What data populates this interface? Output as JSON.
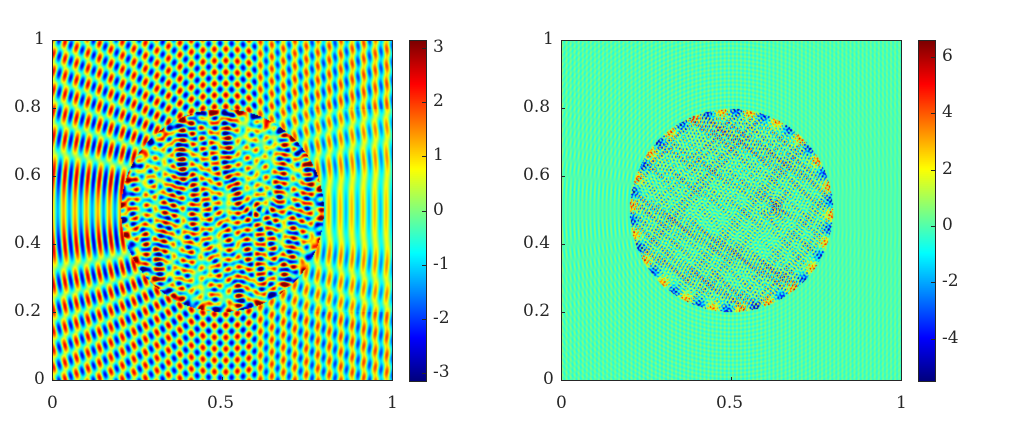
{
  "chart_data": [
    {
      "type": "heatmap",
      "title": "",
      "xlabel": "",
      "ylabel": "",
      "xlim": [
        0,
        1
      ],
      "ylim": [
        0,
        1
      ],
      "xticks": [
        "0",
        "0.5",
        "1"
      ],
      "yticks": [
        "0",
        "0.2",
        "0.4",
        "0.6",
        "0.8",
        "1"
      ],
      "colormap": "jet",
      "clim": [
        -3.14,
        3.14
      ],
      "colorbar_ticks": [
        "-3",
        "-2",
        "-1",
        "0",
        "1",
        "2",
        "3"
      ],
      "field": "scattered wave, circular scatterer centered (0.5,0.5), radius ~0.3, incident from left"
    },
    {
      "type": "heatmap",
      "title": "",
      "xlabel": "",
      "ylabel": "",
      "xlim": [
        0,
        1
      ],
      "ylim": [
        0,
        1
      ],
      "xticks": [
        "0",
        "0.5",
        "1"
      ],
      "yticks": [
        "0",
        "0.2",
        "0.4",
        "0.6",
        "0.8",
        "1"
      ],
      "colormap": "jet",
      "clim": [
        -5.5,
        6.6
      ],
      "colorbar_ticks": [
        "-4",
        "-2",
        "0",
        "2",
        "4",
        "6"
      ],
      "field": "high-frequency scattered wave, circular scatterer centered (0.5,0.5), radius ~0.3"
    }
  ]
}
